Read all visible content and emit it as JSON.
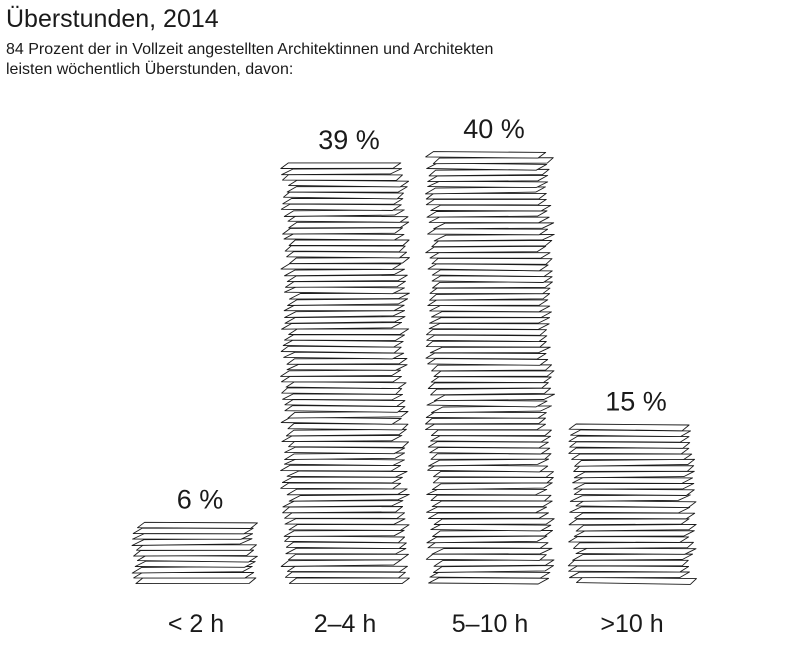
{
  "title": "Überstunden, 2014",
  "subtitle_lines": [
    "84 Prozent der in Vollzeit angestellten Architektinnen und Architekten",
    "leisten wöchentlich Überstunden, davon:"
  ],
  "chart_data": {
    "type": "bar",
    "title": "Überstunden, 2014",
    "subtitle": "84 Prozent der in Vollzeit angestellten Architektinnen und Architekten leisten wöchentlich Überstunden, davon:",
    "categories": [
      "< 2 h",
      "2–4 h",
      "5–10 h",
      ">10 h"
    ],
    "values": [
      6,
      39,
      40,
      15
    ],
    "value_labels": [
      "6 %",
      "39 %",
      "40 %",
      "15 %"
    ],
    "unit": "%",
    "mark_style": "stacked paper sheets",
    "stroke_color": "#1a1a1a",
    "fill_color": "#ffffff",
    "grid": false,
    "legend": "none"
  }
}
